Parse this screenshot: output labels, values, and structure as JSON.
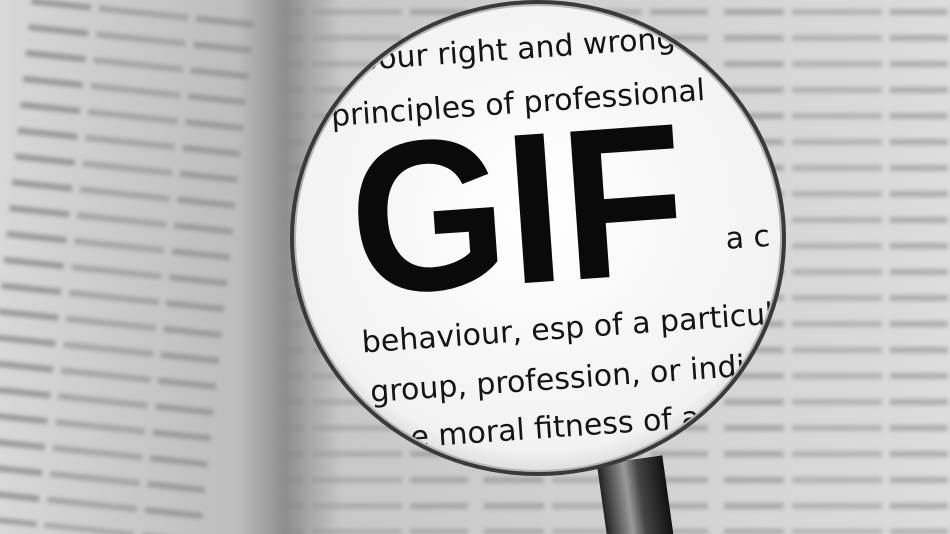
{
  "lens": {
    "lines": [
      "bour right and wrong",
      "principles of professional",
      "behaviour, esp of a particul",
      "group, profession, or indiv",
      "the moral fitness of a d"
    ],
    "headword": "GIF",
    "aside": "a c"
  }
}
